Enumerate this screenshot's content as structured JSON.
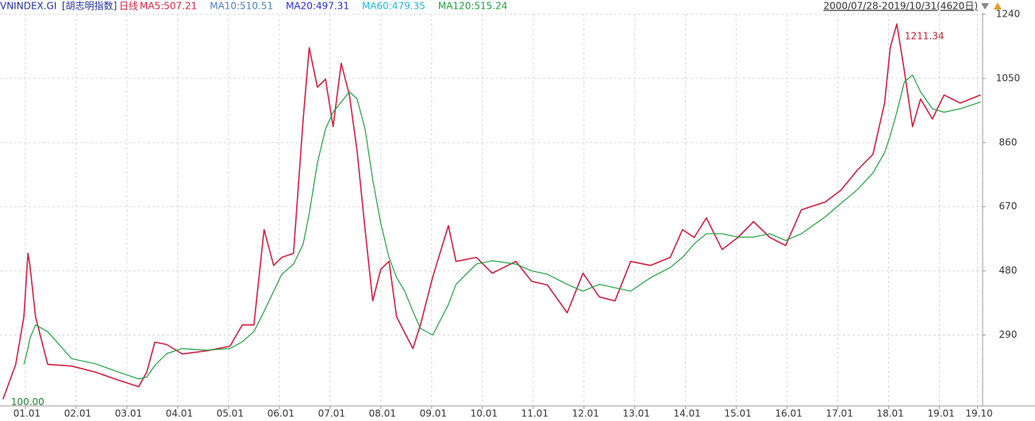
{
  "chart_data": {
    "type": "line",
    "title": "VNINDEX.GI",
    "subtitle": "[胡志明指数]",
    "period": "日线",
    "date_range": "2000/07/28-2019/10/31(4620日)",
    "legend": [
      {
        "name": "MA5:507.21",
        "color": "#e0203c"
      },
      {
        "name": "MA10:510.51",
        "color": "#4a7fc0"
      },
      {
        "name": "MA20:497.31",
        "color": "#2030d0"
      },
      {
        "name": "MA60:479.35",
        "color": "#20b8d8"
      },
      {
        "name": "MA120:515.24",
        "color": "#20a040"
      }
    ],
    "x": [
      2000.56,
      2000.81,
      2000.97,
      2001.05,
      2001.09,
      2001.2,
      2001.44,
      2001.91,
      2002.38,
      2002.84,
      2003.23,
      2003.39,
      2003.55,
      2003.78,
      2004.09,
      2004.56,
      2005.03,
      2005.27,
      2005.5,
      2005.7,
      2005.89,
      2006.05,
      2006.28,
      2006.47,
      2006.59,
      2006.75,
      2006.91,
      2007.06,
      2007.22,
      2007.38,
      2007.53,
      2007.69,
      2007.84,
      2008.0,
      2008.16,
      2008.31,
      2008.47,
      2008.63,
      2008.78,
      2009.02,
      2009.33,
      2009.48,
      2009.88,
      2010.19,
      2010.66,
      2010.97,
      2011.28,
      2011.67,
      2011.98,
      2012.3,
      2012.61,
      2012.92,
      2013.31,
      2013.7,
      2013.94,
      2014.17,
      2014.41,
      2014.72,
      2015.03,
      2015.34,
      2015.66,
      2015.97,
      2016.28,
      2016.75,
      2017.06,
      2017.38,
      2017.69,
      2017.92,
      2018.03,
      2018.16,
      2018.31,
      2018.47,
      2018.63,
      2018.86,
      2019.09,
      2019.41,
      2019.81
    ],
    "series": [
      {
        "color": "#d02040",
        "values": [
          100,
          203,
          344,
          532,
          496,
          344,
          203,
          198,
          180,
          156,
          137,
          180,
          269,
          262,
          234,
          243,
          257,
          320,
          320,
          602,
          496,
          520,
          532,
          930,
          1141,
          1024,
          1048,
          907,
          1095,
          1001,
          837,
          602,
          391,
          485,
          508,
          344,
          297,
          250,
          320,
          461,
          614,
          508,
          520,
          473,
          508,
          449,
          438,
          356,
          473,
          403,
          391,
          508,
          496,
          520,
          602,
          579,
          637,
          543,
          579,
          626,
          579,
          555,
          661,
          684,
          719,
          778,
          825,
          977,
          1141,
          1211.34,
          1071,
          907,
          989,
          930,
          1001,
          977,
          1001
        ],
        "value_labels": [
          "100.00",
          null,
          null,
          null,
          null,
          null,
          null,
          null,
          null,
          null,
          null,
          null,
          null,
          null,
          null,
          null,
          null,
          null,
          null,
          null,
          null,
          null,
          null,
          null,
          null,
          null,
          null,
          null,
          null,
          null,
          null,
          null,
          null,
          null,
          null,
          null,
          null,
          null,
          null,
          null,
          null,
          null,
          null,
          null,
          null,
          null,
          null,
          null,
          null,
          null,
          null,
          null,
          null,
          null,
          null,
          null,
          null,
          null,
          null,
          null,
          null,
          null,
          null,
          null,
          null,
          null,
          null,
          null,
          null,
          "1211.34",
          null,
          null,
          null,
          null,
          null,
          null,
          null
        ]
      },
      {
        "color": "#20a040",
        "values": [
          null,
          null,
          203,
          250,
          280,
          320,
          300,
          220,
          205,
          180,
          160,
          165,
          200,
          235,
          250,
          245,
          250,
          270,
          300,
          360,
          420,
          470,
          500,
          560,
          650,
          800,
          900,
          950,
          980,
          1010,
          990,
          900,
          750,
          620,
          520,
          460,
          420,
          360,
          310,
          290,
          380,
          440,
          500,
          510,
          500,
          480,
          470,
          440,
          420,
          440,
          430,
          420,
          460,
          490,
          520,
          560,
          590,
          590,
          580,
          580,
          590,
          570,
          590,
          640,
          680,
          720,
          770,
          830,
          880,
          950,
          1040,
          1060,
          1010,
          960,
          950,
          960,
          980
        ]
      }
    ],
    "xlim": [
      2000.5,
      2019.85
    ],
    "xticks": [
      {
        "value": 2001,
        "label": "01.01"
      },
      {
        "value": 2002,
        "label": "02.01"
      },
      {
        "value": 2003,
        "label": "03.01"
      },
      {
        "value": 2004,
        "label": "04.01"
      },
      {
        "value": 2005,
        "label": "05.01"
      },
      {
        "value": 2006,
        "label": "06.01"
      },
      {
        "value": 2007,
        "label": "07.01"
      },
      {
        "value": 2008,
        "label": "08.01"
      },
      {
        "value": 2009,
        "label": "09.01"
      },
      {
        "value": 2010,
        "label": "10.01"
      },
      {
        "value": 2011,
        "label": "11.01"
      },
      {
        "value": 2012,
        "label": "12.01"
      },
      {
        "value": 2013,
        "label": "13.01"
      },
      {
        "value": 2014,
        "label": "14.01"
      },
      {
        "value": 2015,
        "label": "15.01"
      },
      {
        "value": 2016,
        "label": "16.01"
      },
      {
        "value": 2017,
        "label": "17.01"
      },
      {
        "value": 2018,
        "label": "18.01"
      },
      {
        "value": 2019,
        "label": "19.01"
      },
      {
        "value": 2019.75,
        "label": "19.10"
      }
    ],
    "ylim": [
      80,
      1240
    ],
    "yticks": [
      290,
      480,
      670,
      860,
      1050,
      1240
    ],
    "grid": true
  }
}
